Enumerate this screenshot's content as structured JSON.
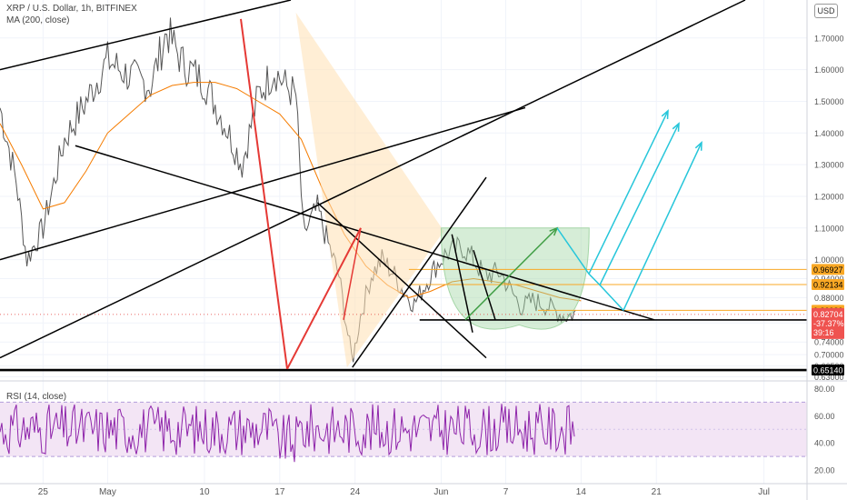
{
  "header": {
    "symbol_line": "XRP / U.S. Dollar, 1h, BITFINEX",
    "ma_line": "MA (200, close)",
    "rsi_line": "RSI (14, close)",
    "currency": "USD"
  },
  "colors": {
    "price": "#555555",
    "ma": "#f57c00",
    "rsi": "#8e24aa",
    "rsi_band": "#f3e5f5",
    "trendline": "#000000",
    "red_line": "#e53935",
    "green_line": "#43a047",
    "cyan_arrow": "#26c6da",
    "orange_level": "#f9a825",
    "cup_fill": "#a5d6a7",
    "wedge_fill": "#ffe0b2"
  },
  "chart_data": [
    {
      "type": "line",
      "panel": "price",
      "title": "XRP / U.S. Dollar, 1h, BITFINEX",
      "x_axis_labels": [
        "25",
        "May",
        "10",
        "17",
        "24",
        "Jun",
        "7",
        "14",
        "21",
        "Jul"
      ],
      "y_ticks": [
        "1.70000",
        "1.60000",
        "1.50000",
        "1.40000",
        "1.30000",
        "1.20000",
        "1.10000",
        "1.00000",
        "0.94000",
        "0.88000",
        "0.80000",
        "0.74000",
        "0.70000",
        "0.66500",
        "0.63000"
      ],
      "ylim": [
        0.62,
        1.82
      ],
      "price_labels": [
        {
          "value": 0.96927,
          "text": "0.96927",
          "style": "orange"
        },
        {
          "value": 0.92134,
          "text": "0.92134",
          "style": "orange"
        },
        {
          "value": 0.83989,
          "text": "0.83989",
          "style": "orange"
        },
        {
          "value": 0.80952,
          "text": "0.80952",
          "style": "black"
        },
        {
          "value": 0.6514,
          "text": "0.65140",
          "style": "black"
        }
      ],
      "current_price": {
        "value": 0.82704,
        "text": "0.82704",
        "change": "-37.37%",
        "countdown": "39:16"
      },
      "series": [
        {
          "name": "MA (200, close)",
          "x": [
            "2021-04-21",
            "2021-04-23",
            "2021-04-25",
            "2021-04-27",
            "2021-04-29",
            "2021-05-01",
            "2021-05-03",
            "2021-05-05",
            "2021-05-07",
            "2021-05-09",
            "2021-05-11",
            "2021-05-13",
            "2021-05-15",
            "2021-05-17",
            "2021-05-19",
            "2021-05-21",
            "2021-05-23",
            "2021-05-25",
            "2021-05-27",
            "2021-05-29",
            "2021-05-31",
            "2021-06-02",
            "2021-06-04",
            "2021-06-06",
            "2021-06-08",
            "2021-06-10",
            "2021-06-12",
            "2021-06-14"
          ],
          "y": [
            1.43,
            1.3,
            1.16,
            1.18,
            1.28,
            1.4,
            1.46,
            1.52,
            1.55,
            1.56,
            1.56,
            1.54,
            1.5,
            1.46,
            1.38,
            1.22,
            1.08,
            0.98,
            0.92,
            0.88,
            0.9,
            0.93,
            0.94,
            0.93,
            0.92,
            0.9,
            0.88,
            0.87
          ]
        }
      ],
      "annotations": {
        "horizontal_levels": [
          0.96927,
          0.92134,
          0.83989,
          0.80952,
          0.6514
        ],
        "pattern": "cup"
      }
    },
    {
      "type": "line",
      "panel": "oscillator",
      "title": "RSI (14, close)",
      "y_ticks": [
        "80.00",
        "60.00",
        "40.00",
        "20.00"
      ],
      "ylim": [
        10,
        85
      ],
      "band": [
        30,
        70
      ],
      "middle": 50
    }
  ]
}
